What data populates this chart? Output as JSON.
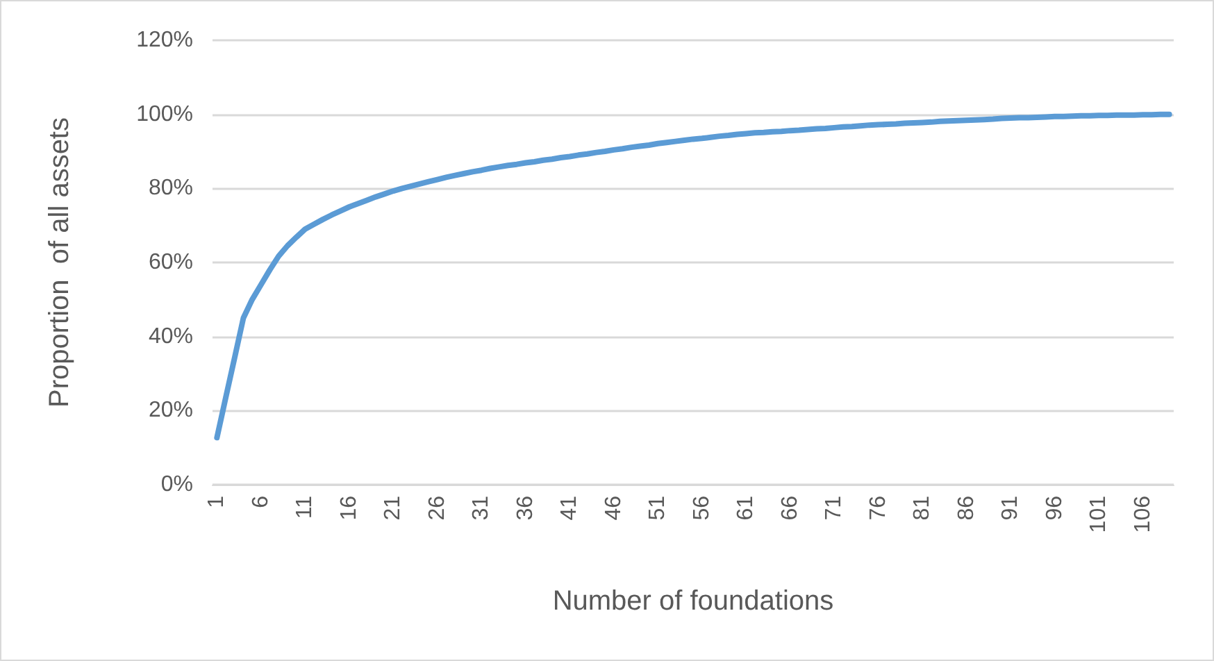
{
  "chart_data": {
    "type": "line",
    "xlabel": "Number of foundations",
    "ylabel": "Proportion  of all assets",
    "categories": [
      "1",
      null,
      null,
      null,
      null,
      "6",
      null,
      null,
      null,
      null,
      "11",
      null,
      null,
      null,
      null,
      "16",
      null,
      null,
      null,
      null,
      "21",
      null,
      null,
      null,
      null,
      "26",
      null,
      null,
      null,
      null,
      "31",
      null,
      null,
      null,
      null,
      "36",
      null,
      null,
      null,
      null,
      "41",
      null,
      null,
      null,
      null,
      "46",
      null,
      null,
      null,
      null,
      "51",
      null,
      null,
      null,
      null,
      "56",
      null,
      null,
      null,
      null,
      "61",
      null,
      null,
      null,
      null,
      "66",
      null,
      null,
      null,
      null,
      "71",
      null,
      null,
      null,
      null,
      "76",
      null,
      null,
      null,
      null,
      "81",
      null,
      null,
      null,
      null,
      "86",
      null,
      null,
      null,
      null,
      "91",
      null,
      null,
      null,
      null,
      "96",
      null,
      null,
      null,
      null,
      "101",
      null,
      null,
      null,
      null,
      "106",
      null,
      null,
      null
    ],
    "series": [
      {
        "color": "#5b9bd5",
        "values": [
          12.7,
          23.5,
          34.2,
          45,
          50,
          54,
          58,
          61.7,
          64.5,
          66.8,
          69,
          70.3,
          71.6,
          72.8,
          73.9,
          75,
          75.9,
          76.8,
          77.7,
          78.5,
          79.3,
          80,
          80.6,
          81.2,
          81.8,
          82.4,
          83,
          83.5,
          84,
          84.5,
          84.9,
          85.4,
          85.8,
          86.2,
          86.5,
          86.9,
          87.2,
          87.6,
          87.9,
          88.3,
          88.6,
          89,
          89.3,
          89.7,
          90,
          90.4,
          90.7,
          91.1,
          91.4,
          91.7,
          92.1,
          92.4,
          92.7,
          93,
          93.3,
          93.5,
          93.8,
          94.1,
          94.3,
          94.6,
          94.8,
          95,
          95.1,
          95.3,
          95.4,
          95.6,
          95.7,
          95.9,
          96.1,
          96.2,
          96.4,
          96.6,
          96.7,
          96.9,
          97.1,
          97.2,
          97.3,
          97.4,
          97.6,
          97.7,
          97.8,
          97.9,
          98.1,
          98.2,
          98.3,
          98.4,
          98.5,
          98.6,
          98.7,
          98.9,
          99,
          99.1,
          99.1,
          99.2,
          99.3,
          99.4,
          99.4,
          99.5,
          99.6,
          99.6,
          99.7,
          99.7,
          99.8,
          99.8,
          99.8,
          99.9,
          99.9,
          100,
          100
        ]
      }
    ],
    "ylim": [
      0,
      120
    ],
    "yticks": [
      {
        "value": 0,
        "label": "0%"
      },
      {
        "value": 20,
        "label": "20%"
      },
      {
        "value": 40,
        "label": "40%"
      },
      {
        "value": 60,
        "label": "60%"
      },
      {
        "value": 80,
        "label": "80%"
      },
      {
        "value": 100,
        "label": "100%"
      },
      {
        "value": 120,
        "label": "120%"
      }
    ],
    "grid": "y",
    "marker": "none",
    "line_style": "solid"
  }
}
